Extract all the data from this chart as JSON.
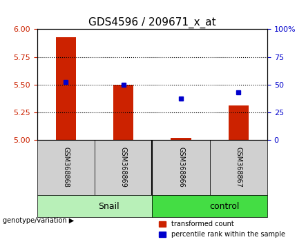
{
  "title": "GDS4596 / 209671_x_at",
  "samples": [
    "GSM368868",
    "GSM368869",
    "GSM368866",
    "GSM368867"
  ],
  "groups": [
    "Snail",
    "Snail",
    "control",
    "control"
  ],
  "group_labels": [
    "Snail",
    "control"
  ],
  "group_colors": [
    "#90ee90",
    "#00cc00"
  ],
  "red_values": [
    5.93,
    5.5,
    5.02,
    5.31
  ],
  "blue_values_pct": [
    52,
    50,
    37,
    43
  ],
  "ylim_left": [
    5.0,
    6.0
  ],
  "ylim_right": [
    0,
    100
  ],
  "yticks_left": [
    5.0,
    5.25,
    5.5,
    5.75,
    6.0
  ],
  "yticks_right": [
    0,
    25,
    50,
    75,
    100
  ],
  "grid_ticks": [
    5.25,
    5.5,
    5.75
  ],
  "bar_color": "#cc2200",
  "dot_color": "#0000cc",
  "bar_bottom": 5.0,
  "bar_width": 0.35,
  "legend_red_label": "transformed count",
  "legend_blue_label": "percentile rank within the sample",
  "genotype_label": "genotype/variation"
}
